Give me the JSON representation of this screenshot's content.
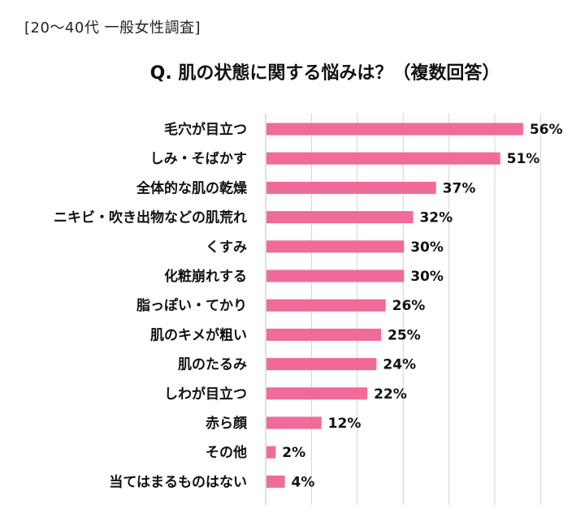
{
  "header": {
    "subtitle": "[20～40代 一般女性調査]",
    "title": "Q. 肌の状態に関する悩みは？（複数回答）"
  },
  "colors": {
    "bar": "#f06a9a",
    "grid": "#d4d4d4"
  },
  "chart_data": {
    "type": "bar",
    "orientation": "horizontal",
    "title": "Q. 肌の状態に関する悩みは？（複数回答）",
    "unit": "%",
    "xlim": [
      0,
      60
    ],
    "grid": true,
    "categories": [
      "毛穴が目立つ",
      "しみ・そばかす",
      "全体的な肌の乾燥",
      "ニキビ・吹き出物などの肌荒れ",
      "くすみ",
      "化粧崩れする",
      "脂っぽい・てかり",
      "肌のキメが粗い",
      "肌のたるみ",
      "しわが目立つ",
      "赤ら顔",
      "その他",
      "当てはまるものはない"
    ],
    "values": [
      56,
      51,
      37,
      32,
      30,
      30,
      26,
      25,
      24,
      22,
      12,
      2,
      4
    ],
    "value_labels": [
      "56%",
      "51%",
      "37%",
      "32%",
      "30%",
      "30%",
      "26%",
      "25%",
      "24%",
      "22%",
      "12%",
      "2%",
      "4%"
    ]
  }
}
